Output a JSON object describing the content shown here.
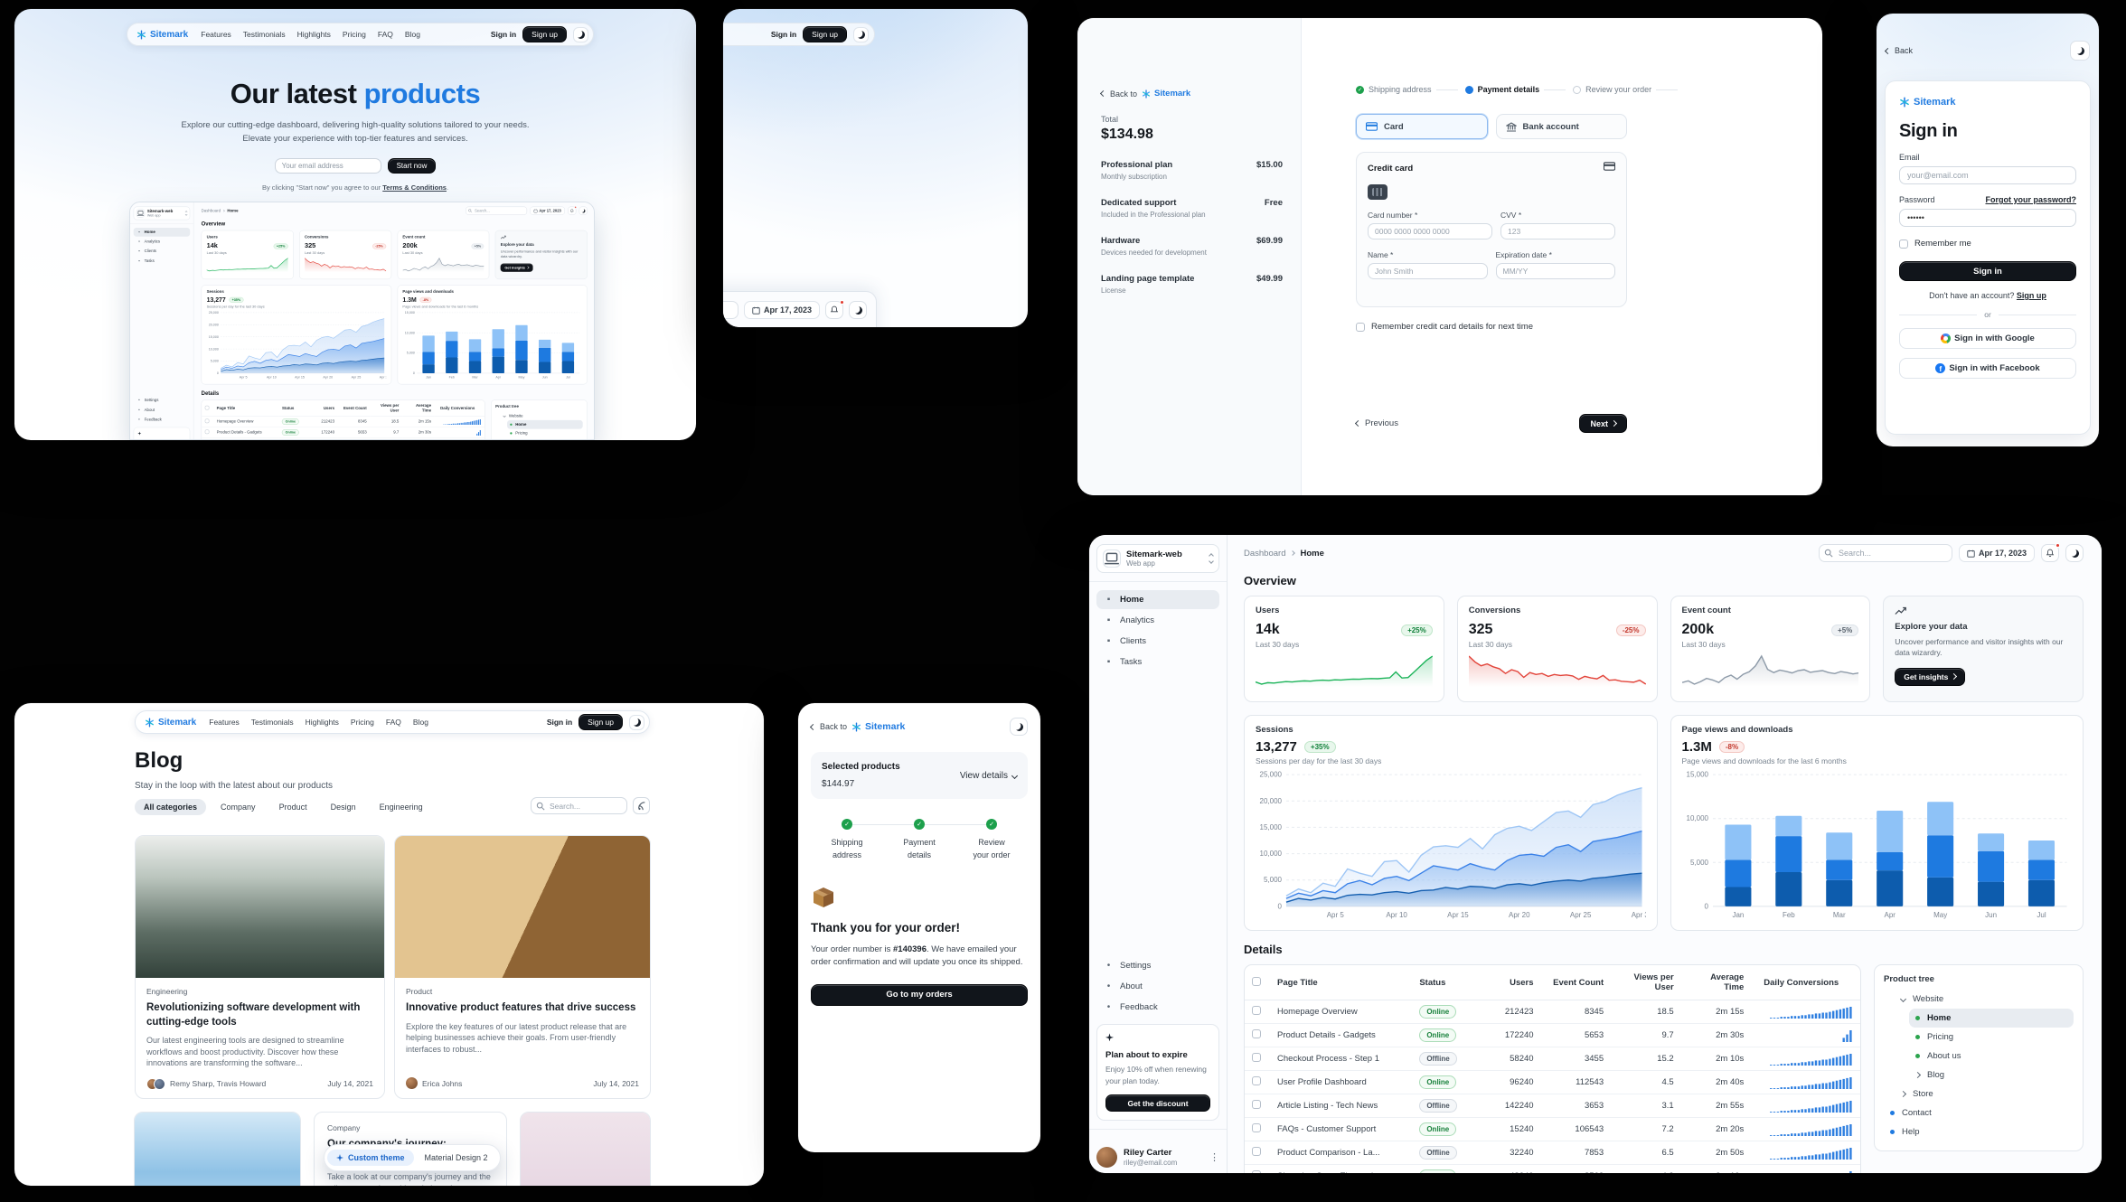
{
  "theme": {
    "accent": "#1f7ae0",
    "dark_button": "#11151b",
    "success_green": "#1da04c",
    "error_red": "#c2372c"
  },
  "landing": {
    "nav": {
      "brand": "Sitemark",
      "links": [
        "Features",
        "Testimonials",
        "Highlights",
        "Pricing",
        "FAQ",
        "Blog"
      ],
      "sign_in": "Sign in",
      "sign_up": "Sign up"
    },
    "hero": {
      "title_plain": "Our latest ",
      "title_accent": "products",
      "subtitle_line1": "Explore our cutting-edge dashboard, delivering high-quality solutions tailored to your needs.",
      "subtitle_line2": "Elevate your experience with top-tier features and services.",
      "email_placeholder": "Your email address",
      "cta": "Start now",
      "terms_prefix": "By clicking \"Start now\" you agree to our ",
      "terms_link": "Terms & Conditions",
      "terms_suffix": "."
    }
  },
  "checkout": {
    "back_to": "Back to",
    "brand": "Sitemark",
    "total_label": "Total",
    "total": "$134.98",
    "items": [
      {
        "name": "Professional plan",
        "desc": "Monthly subscription",
        "price": "$15.00"
      },
      {
        "name": "Dedicated support",
        "desc": "Included in the Professional plan",
        "price": "Free"
      },
      {
        "name": "Hardware",
        "desc": "Devices needed for development",
        "price": "$69.99"
      },
      {
        "name": "Landing page template",
        "desc": "License",
        "price": "$49.99"
      }
    ],
    "steps": [
      {
        "label": "Shipping address",
        "state": "done"
      },
      {
        "label": "Payment details",
        "state": "active"
      },
      {
        "label": "Review your order",
        "state": "todo"
      }
    ],
    "payment_types": {
      "card": "Card",
      "bank": "Bank account"
    },
    "card_panel_title": "Credit card",
    "fields": {
      "card_number_label": "Card number *",
      "card_number_placeholder": "0000 0000 0000 0000",
      "cvv_label": "CVV *",
      "cvv_placeholder": "123",
      "name_label": "Name *",
      "name_placeholder": "John Smith",
      "exp_label": "Expiration date *",
      "exp_placeholder": "MM/YY"
    },
    "remember": "Remember credit card details for next time",
    "previous": "Previous",
    "next": "Next"
  },
  "signin": {
    "back": "Back",
    "brand": "Sitemark",
    "title": "Sign in",
    "email_label": "Email",
    "email_placeholder": "your@email.com",
    "password_label": "Password",
    "forgot": "Forgot your password?",
    "password_value": "••••••",
    "remember": "Remember me",
    "submit": "Sign in",
    "no_account": "Don't have an account?",
    "sign_up_link": "Sign up",
    "divider": "or",
    "google": "Sign in with Google",
    "facebook": "Sign in with Facebook"
  },
  "blog": {
    "title": "Blog",
    "subtitle": "Stay in the loop with the latest about our products",
    "categories": [
      {
        "label": "All categories",
        "cls": "selected"
      },
      {
        "label": "Company",
        "cls": ""
      },
      {
        "label": "Product",
        "cls": ""
      },
      {
        "label": "Design",
        "cls": ""
      },
      {
        "label": "Engineering",
        "cls": ""
      }
    ],
    "search_placeholder": "Search...",
    "posts": [
      {
        "tag": "Engineering",
        "title": "Revolutionizing software development with cutting-edge tools",
        "excerpt": "Our latest engineering tools are designed to streamline workflows and boost productivity. Discover how these innovations are transforming the software...",
        "authors": "Remy Sharp, Travis Howard",
        "date": "July 14, 2021"
      },
      {
        "tag": "Product",
        "title": "Innovative product features that drive success",
        "excerpt": "Explore the key features of our latest product release that are helping businesses achieve their goals. From user-friendly interfaces to robust...",
        "authors": "Erica Johns",
        "date": "July 14, 2021"
      },
      {
        "tag": "Company",
        "title": "Our company's journey: milestones and achievements",
        "excerpt": "Take a look at our company's journey and the milestones we've achieved along the way."
      }
    ],
    "switcher": {
      "custom": "Custom theme",
      "md2": "Material Design 2"
    }
  },
  "confirmation": {
    "back_to": "Back to",
    "brand": "Sitemark",
    "selected_products": "Selected products",
    "amount": "$144.97",
    "view_details": "View details",
    "steps": [
      {
        "l1": "Shipping",
        "l2": "address"
      },
      {
        "l1": "Payment",
        "l2": "details"
      },
      {
        "l1": "Review",
        "l2": "your order"
      }
    ],
    "thanks": "Thank you for your order!",
    "body_prefix": "Your order number is ",
    "order_number": "#140396",
    "body_suffix": ". We have emailed your order confirmation and will update you once its shipped.",
    "cta": "Go to my orders"
  },
  "dashboard": {
    "app_name": "Sitemark-web",
    "app_type": "Web app",
    "nav": [
      {
        "label": "Home",
        "cls": "active",
        "icon": "home"
      },
      {
        "label": "Analytics",
        "cls": "",
        "icon": "analytics"
      },
      {
        "label": "Clients",
        "cls": "",
        "icon": "clients"
      },
      {
        "label": "Tasks",
        "cls": "",
        "icon": "tasks"
      }
    ],
    "nav_secondary": [
      {
        "label": "Settings",
        "icon": "gear"
      },
      {
        "label": "About",
        "icon": "info"
      },
      {
        "label": "Feedback",
        "icon": "question"
      }
    ],
    "breadcrumb": {
      "root": "Dashboard",
      "current": "Home"
    },
    "search_placeholder": "Search...",
    "date": "Apr 17, 2023",
    "section_overview": "Overview",
    "section_details": "Details",
    "cards": [
      {
        "title": "Users",
        "value": "14k",
        "chip": "+25%",
        "chip_type": "success",
        "caption": "Last 30 days",
        "spark": "users_spark"
      },
      {
        "title": "Conversions",
        "value": "325",
        "chip": "-25%",
        "chip_type": "error",
        "caption": "Last 30 days",
        "spark": "conversions_spark"
      },
      {
        "title": "Event count",
        "value": "200k",
        "chip": "+5%",
        "chip_type": "neutral",
        "caption": "Last 30 days",
        "spark": "events_spark"
      }
    ],
    "insight_card": {
      "title": "Explore your data",
      "body": "Uncover performance and visitor insights with our data wizardry.",
      "cta": "Get insights"
    },
    "sessions_card": {
      "title": "Sessions",
      "value": "13,277",
      "chip": "+35%",
      "chip_type": "success",
      "caption": "Sessions per day for the last 30 days"
    },
    "pageviews_card": {
      "title": "Page views and downloads",
      "value": "1.3M",
      "chip": "-8%",
      "chip_type": "error",
      "caption": "Page views and downloads for the last 6 months"
    },
    "table": {
      "columns": [
        "Page Title",
        "Status",
        "Users",
        "Event Count",
        "Views per User",
        "Average Time",
        "Daily Conversions"
      ],
      "rows": [
        {
          "title": "Homepage Overview",
          "status": "Online",
          "users": "212423",
          "events": "8345",
          "views": "18.5",
          "time": "2m 15s",
          "trend": "ramp"
        },
        {
          "title": "Product Details - Gadgets",
          "status": "Online",
          "users": "172240",
          "events": "5653",
          "views": "9.7",
          "time": "2m 30s",
          "trend": "tail"
        },
        {
          "title": "Checkout Process - Step 1",
          "status": "Offline",
          "users": "58240",
          "events": "3455",
          "views": "15.2",
          "time": "2m 10s",
          "trend": "ramp"
        },
        {
          "title": "User Profile Dashboard",
          "status": "Online",
          "users": "96240",
          "events": "112543",
          "views": "4.5",
          "time": "2m 40s",
          "trend": "ramp"
        },
        {
          "title": "Article Listing - Tech News",
          "status": "Offline",
          "users": "142240",
          "events": "3653",
          "views": "3.1",
          "time": "2m 55s",
          "trend": "ramp"
        },
        {
          "title": "FAQs - Customer Support",
          "status": "Online",
          "users": "15240",
          "events": "106543",
          "views": "7.2",
          "time": "2m 20s",
          "trend": "ramp"
        },
        {
          "title": "Product Comparison - La...",
          "status": "Offline",
          "users": "32240",
          "events": "7853",
          "views": "6.5",
          "time": "2m 50s",
          "trend": "ramp"
        },
        {
          "title": "Shopping Cart - Electronics",
          "status": "Online",
          "users": "48240",
          "events": "8563",
          "views": "4.3",
          "time": "3m 10s",
          "trend": "tail"
        }
      ]
    },
    "tree": {
      "title": "Product tree",
      "items": [
        {
          "label": "Website",
          "cls": "lvl1 caret-down"
        },
        {
          "label": "Home",
          "cls": "lvl2 dot-green selected"
        },
        {
          "label": "Pricing",
          "cls": "lvl2 dot-green"
        },
        {
          "label": "About us",
          "cls": "lvl2 dot-green"
        },
        {
          "label": "Blog",
          "cls": "lvl2 caret-right"
        },
        {
          "label": "Store",
          "cls": "lvl1 caret-right"
        },
        {
          "label": "Contact",
          "cls": "lvl0 dot-blue"
        },
        {
          "label": "Help",
          "cls": "lvl0 dot-blue"
        }
      ]
    },
    "plan_card": {
      "title": "Plan about to expire",
      "body": "Enjoy 10% off when renewing your plan today.",
      "cta": "Get the discount"
    },
    "user": {
      "name": "Riley Carter",
      "email": "riley@email.com"
    }
  },
  "chart_data": [
    {
      "id": "users_spark",
      "type": "line",
      "title": "Users - last 30 days",
      "color": "#1db45a",
      "values": [
        200,
        170,
        190,
        185,
        195,
        205,
        200,
        210,
        215,
        212,
        220,
        225,
        222,
        230,
        228,
        235,
        240,
        238,
        244,
        248,
        246,
        252,
        258,
        340,
        256,
        262,
        340,
        420,
        500,
        560
      ]
    },
    {
      "id": "conversions_spark",
      "type": "line",
      "title": "Conversions - last 30 days",
      "color": "#e2443a",
      "values": [
        520,
        460,
        420,
        440,
        410,
        390,
        340,
        380,
        360,
        300,
        350,
        330,
        340,
        310,
        330,
        320,
        325,
        315,
        280,
        310,
        295,
        285,
        320,
        270,
        275,
        260,
        255,
        250,
        270,
        230
      ]
    },
    {
      "id": "events_spark",
      "type": "line",
      "title": "Event count - last 30 days",
      "color": "#8d9aa8",
      "values": [
        320,
        330,
        310,
        325,
        345,
        335,
        320,
        350,
        365,
        340,
        370,
        385,
        420,
        480,
        400,
        380,
        395,
        388,
        378,
        392,
        398,
        382,
        388,
        392,
        380,
        374,
        386,
        380,
        372,
        378
      ]
    },
    {
      "id": "sessions",
      "type": "area",
      "title": "Sessions per day for the last 30 days",
      "ylim": [
        0,
        25000
      ],
      "y_ticks": [
        "0",
        "5,000",
        "10,000",
        "15,000",
        "20,000",
        "25,000"
      ],
      "x_labels": [
        "Apr 5",
        "Apr 10",
        "Apr 15",
        "Apr 20",
        "Apr 25",
        "Apr 30"
      ],
      "x_label_pos": [
        4,
        9,
        14,
        19,
        24,
        29
      ],
      "grid": true,
      "legend": "none",
      "series": [
        {
          "name": "high",
          "color": "#9ec6f5",
          "fill": "#c9def8",
          "values": [
            2000,
            3300,
            2600,
            4400,
            3800,
            7100,
            6300,
            5700,
            8500,
            8700,
            6500,
            9700,
            11300,
            11500,
            11200,
            12900,
            10900,
            13600,
            14800,
            15200,
            14400,
            16100,
            17800,
            18100,
            16900,
            19300,
            19900,
            21100,
            21900,
            22500
          ]
        },
        {
          "name": "mid",
          "color": "#3b82e8",
          "fill": "#7fb1f0",
          "values": [
            1500,
            2500,
            2000,
            3000,
            2600,
            4300,
            4900,
            4100,
            5300,
            5700,
            4900,
            6300,
            7700,
            7300,
            6900,
            8100,
            7400,
            6900,
            8700,
            9700,
            9900,
            9500,
            11200,
            11700,
            10400,
            12300,
            12700,
            13100,
            13700,
            14300
          ]
        },
        {
          "name": "low",
          "color": "#155fb0",
          "fill": "#4f8cd2",
          "values": [
            800,
            1500,
            1200,
            1700,
            1400,
            2100,
            2300,
            2200,
            2600,
            2800,
            2500,
            3000,
            3100,
            3600,
            3300,
            3800,
            3700,
            3400,
            4100,
            4300,
            4000,
            4500,
            4800,
            5000,
            4800,
            5300,
            5500,
            5800,
            6100,
            6300
          ]
        }
      ]
    },
    {
      "id": "pageviews",
      "type": "stacked-bar",
      "title": "Page views and downloads for the last 6 months",
      "categories": [
        "Jan",
        "Feb",
        "Mar",
        "Apr",
        "May",
        "Jun",
        "Jul"
      ],
      "ylim": [
        0,
        15000
      ],
      "y_ticks": [
        "0",
        "5,000",
        "10,000",
        "15,000"
      ],
      "grid": true,
      "legend": "none",
      "series": [
        {
          "name": "bottom",
          "color": "#0d5cad",
          "values": [
            2200,
            3900,
            3000,
            4100,
            3300,
            2800,
            3000
          ]
        },
        {
          "name": "middle",
          "color": "#1e7ae0",
          "values": [
            3100,
            4100,
            2300,
            2100,
            4800,
            3500,
            2300
          ]
        },
        {
          "name": "top",
          "color": "#8ec2f7",
          "values": [
            4000,
            2300,
            3100,
            4700,
            3800,
            2000,
            2200
          ]
        }
      ]
    },
    {
      "id": "mini_ramp",
      "type": "mini-bars",
      "title": "Daily conversions trend",
      "color": "#2f7fe0",
      "values": [
        1,
        1,
        1,
        2,
        2,
        2,
        3,
        3,
        3,
        4,
        4,
        5,
        5,
        6,
        6,
        7,
        7,
        8,
        9,
        10,
        11,
        12,
        13,
        14
      ]
    },
    {
      "id": "mini_tail",
      "type": "mini-bars",
      "title": "Daily conversions trend (late spike)",
      "color": "#2f7fe0",
      "values": [
        0,
        0,
        0,
        0,
        0,
        0,
        0,
        0,
        0,
        0,
        0,
        0,
        0,
        0,
        0,
        0,
        0,
        0,
        0,
        0,
        0,
        5,
        9,
        14
      ]
    }
  ]
}
